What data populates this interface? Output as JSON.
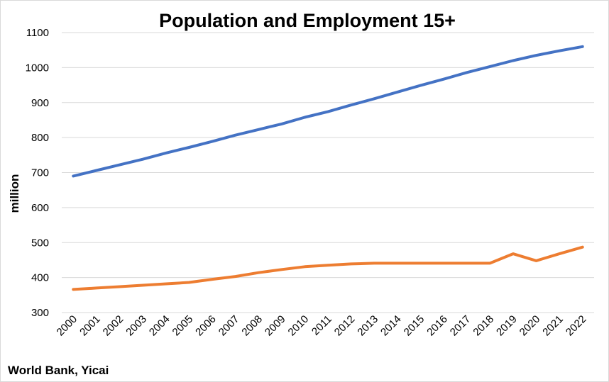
{
  "chart_data": {
    "type": "line",
    "title": "Population and Employment 15+",
    "xlabel": "",
    "ylabel": "million",
    "source": "World Bank, Yicai",
    "ylim": [
      300,
      1100
    ],
    "yticks": [
      300,
      400,
      500,
      600,
      700,
      800,
      900,
      1000,
      1100
    ],
    "grid": true,
    "legend": "none",
    "x": [
      "2000",
      "2001",
      "2002",
      "2003",
      "2004",
      "2005",
      "2006",
      "2007",
      "2008",
      "2009",
      "2010",
      "2011",
      "2012",
      "2013",
      "2014",
      "2015",
      "2016",
      "2017",
      "2018",
      "2019",
      "2020",
      "2021",
      "2022"
    ],
    "series": [
      {
        "color": "#4472c4",
        "values": [
          690,
          706,
          722,
          738,
          756,
          772,
          789,
          807,
          823,
          839,
          858,
          874,
          893,
          911,
          930,
          949,
          967,
          986,
          1003,
          1020,
          1035,
          1048,
          1060
        ]
      },
      {
        "color": "#ed7d31",
        "values": [
          366,
          370,
          374,
          378,
          382,
          386,
          395,
          403,
          414,
          423,
          431,
          435,
          439,
          441,
          441,
          441,
          441,
          441,
          441,
          468,
          448,
          468,
          487
        ]
      }
    ]
  }
}
